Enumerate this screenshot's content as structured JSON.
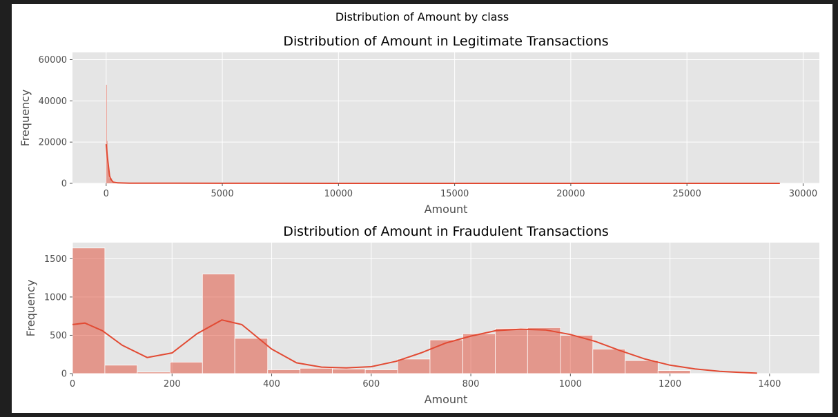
{
  "figure": {
    "suptitle": "Distribution of Amount by class"
  },
  "chart_data": [
    {
      "type": "histogram",
      "title": "Distribution of Amount in Legitimate Transactions",
      "xlabel": "Amount",
      "ylabel": "Frequency",
      "xlim": [
        -1450,
        30700
      ],
      "ylim": [
        0,
        63500
      ],
      "xticks": [
        0,
        5000,
        10000,
        15000,
        20000,
        25000,
        30000
      ],
      "yticks": [
        0,
        20000,
        40000,
        60000
      ],
      "grid": true,
      "bar_color": "#e24a33",
      "kde_color": "#e24a33",
      "bins": [
        {
          "x0": 0,
          "x1": 30,
          "count": 47800
        },
        {
          "x0": 30,
          "x1": 60,
          "count": 20500
        },
        {
          "x0": 60,
          "x1": 120,
          "count": 9000
        },
        {
          "x0": 120,
          "x1": 250,
          "count": 2500
        },
        {
          "x0": 250,
          "x1": 500,
          "count": 600
        },
        {
          "x0": 500,
          "x1": 29000,
          "count": 40
        }
      ],
      "kde": {
        "x": [
          0,
          50,
          100,
          150,
          200,
          300,
          500,
          1000,
          5000,
          10000,
          20000,
          29000
        ],
        "y": [
          19000,
          13000,
          8000,
          3500,
          2000,
          600,
          250,
          100,
          30,
          10,
          5,
          2
        ]
      }
    },
    {
      "type": "histogram",
      "title": "Distribution of Amount in Fraudulent Transactions",
      "xlabel": "Amount",
      "ylabel": "Frequency",
      "xlim": [
        0,
        1500
      ],
      "ylim": [
        0,
        1710
      ],
      "xticks": [
        0,
        200,
        400,
        600,
        800,
        1000,
        1200,
        1400
      ],
      "yticks": [
        0,
        500,
        1000,
        1500
      ],
      "grid": true,
      "bar_color": "#e24a33",
      "kde_color": "#e24a33",
      "bins": [
        {
          "x0": 0,
          "x1": 65,
          "count": 1640
        },
        {
          "x0": 65,
          "x1": 130,
          "count": 110
        },
        {
          "x0": 130,
          "x1": 196,
          "count": 20
        },
        {
          "x0": 196,
          "x1": 261,
          "count": 150
        },
        {
          "x0": 261,
          "x1": 326,
          "count": 1300
        },
        {
          "x0": 326,
          "x1": 392,
          "count": 460
        },
        {
          "x0": 392,
          "x1": 457,
          "count": 50
        },
        {
          "x0": 457,
          "x1": 522,
          "count": 70
        },
        {
          "x0": 522,
          "x1": 588,
          "count": 60
        },
        {
          "x0": 588,
          "x1": 653,
          "count": 50
        },
        {
          "x0": 653,
          "x1": 718,
          "count": 190
        },
        {
          "x0": 718,
          "x1": 784,
          "count": 440
        },
        {
          "x0": 784,
          "x1": 849,
          "count": 520
        },
        {
          "x0": 849,
          "x1": 914,
          "count": 590
        },
        {
          "x0": 914,
          "x1": 980,
          "count": 600
        },
        {
          "x0": 980,
          "x1": 1045,
          "count": 500
        },
        {
          "x0": 1045,
          "x1": 1110,
          "count": 320
        },
        {
          "x0": 1110,
          "x1": 1176,
          "count": 170
        },
        {
          "x0": 1176,
          "x1": 1241,
          "count": 40
        }
      ],
      "kde": {
        "x": [
          0,
          25,
          60,
          100,
          150,
          200,
          250,
          300,
          340,
          400,
          450,
          500,
          550,
          600,
          650,
          700,
          750,
          800,
          850,
          900,
          950,
          1000,
          1050,
          1100,
          1150,
          1200,
          1250,
          1300,
          1340,
          1375
        ],
        "y": [
          640,
          660,
          560,
          370,
          210,
          270,
          520,
          700,
          640,
          320,
          140,
          85,
          75,
          90,
          160,
          270,
          400,
          490,
          560,
          580,
          570,
          510,
          420,
          300,
          190,
          110,
          60,
          30,
          15,
          5
        ]
      }
    }
  ]
}
